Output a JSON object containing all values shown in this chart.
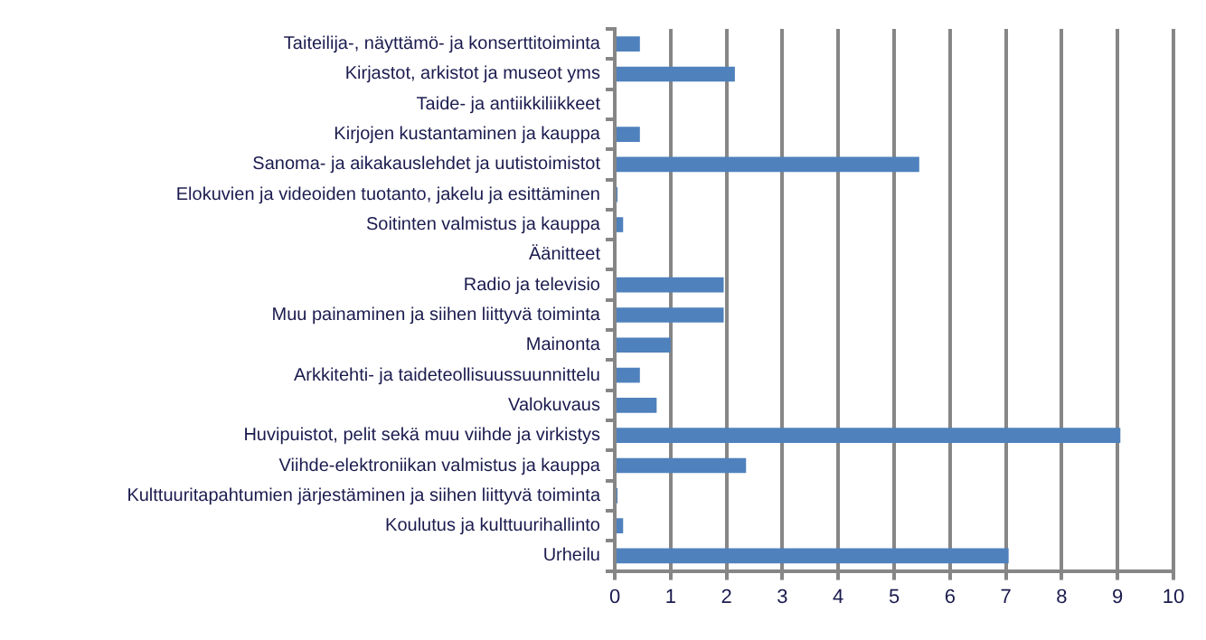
{
  "chart_data": {
    "type": "bar",
    "orientation": "horizontal",
    "categories": [
      "Taiteilija-, näyttämö- ja konserttitoiminta",
      "Kirjastot, arkistot ja museot yms",
      "Taide- ja antiikkiliikkeet",
      "Kirjojen kustantaminen ja kauppa",
      "Sanoma- ja aikakauslehdet ja uutistoimistot",
      "Elokuvien ja videoiden tuotanto, jakelu ja esittäminen",
      "Soitinten valmistus ja kauppa",
      "Äänitteet",
      "Radio ja televisio",
      "Muu painaminen ja siihen liittyvä toiminta",
      "Mainonta",
      "Arkkitehti- ja taideteollisuussuunnittelu",
      "Valokuvaus",
      "Huvipuistot, pelit sekä muu viihde ja virkistys",
      "Viihde-elektroniikan valmistus ja kauppa",
      "Kulttuuritapahtumien järjestäminen ja siihen liittyvä toiminta",
      "Koulutus ja kulttuurihallinto",
      "Urheilu"
    ],
    "values": [
      0.45,
      2.15,
      0,
      0.45,
      5.45,
      0.05,
      0.15,
      0,
      1.95,
      1.95,
      1.0,
      0.45,
      0.75,
      9.05,
      2.35,
      0.05,
      0.15,
      7.05
    ],
    "color": "#4f81bd",
    "xlim": [
      0,
      10
    ],
    "xticks": [
      0,
      1,
      2,
      3,
      4,
      5,
      6,
      7,
      8,
      9,
      10
    ],
    "grid": "x",
    "legend": false
  }
}
